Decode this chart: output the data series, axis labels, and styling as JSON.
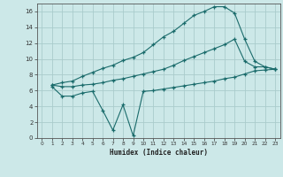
{
  "xlabel": "Humidex (Indice chaleur)",
  "background_color": "#cce8e8",
  "grid_color": "#b0d0d0",
  "line_color": "#1a6b6b",
  "xlim": [
    -0.5,
    23.5
  ],
  "ylim": [
    0,
    17
  ],
  "xticks": [
    0,
    1,
    2,
    3,
    4,
    5,
    6,
    7,
    8,
    9,
    10,
    11,
    12,
    13,
    14,
    15,
    16,
    17,
    18,
    19,
    20,
    21,
    22,
    23
  ],
  "yticks": [
    0,
    2,
    4,
    6,
    8,
    10,
    12,
    14,
    16
  ],
  "curve1_x": [
    1,
    2,
    3,
    4,
    5,
    6,
    7,
    8,
    9,
    10,
    11,
    12,
    13,
    14,
    15,
    16,
    17,
    18,
    19,
    20,
    21,
    22,
    23
  ],
  "curve1_y": [
    6.7,
    7.0,
    7.2,
    7.8,
    8.3,
    8.8,
    9.2,
    9.8,
    10.2,
    10.8,
    11.8,
    12.8,
    13.5,
    14.5,
    15.5,
    16.0,
    16.6,
    16.6,
    15.8,
    12.5,
    9.7,
    9.0,
    8.7
  ],
  "curve2_x": [
    1,
    2,
    3,
    4,
    5,
    6,
    7,
    8,
    9,
    10,
    11,
    12,
    13,
    14,
    15,
    16,
    17,
    18,
    19,
    20,
    21,
    22,
    23
  ],
  "curve2_y": [
    6.7,
    6.5,
    6.5,
    6.7,
    6.8,
    7.0,
    7.3,
    7.5,
    7.8,
    8.1,
    8.4,
    8.7,
    9.2,
    9.8,
    10.3,
    10.8,
    11.3,
    11.8,
    12.5,
    9.7,
    9.0,
    9.0,
    8.7
  ],
  "curve3_x": [
    1,
    2,
    3,
    4,
    5,
    6,
    7,
    8,
    9,
    10,
    11,
    12,
    13,
    14,
    15,
    16,
    17,
    18,
    19,
    20,
    21,
    22,
    23
  ],
  "curve3_y": [
    6.5,
    5.3,
    5.3,
    5.7,
    5.9,
    3.5,
    1.0,
    4.2,
    0.3,
    5.9,
    6.0,
    6.2,
    6.4,
    6.6,
    6.8,
    7.0,
    7.2,
    7.5,
    7.7,
    8.1,
    8.5,
    8.6,
    8.7
  ]
}
